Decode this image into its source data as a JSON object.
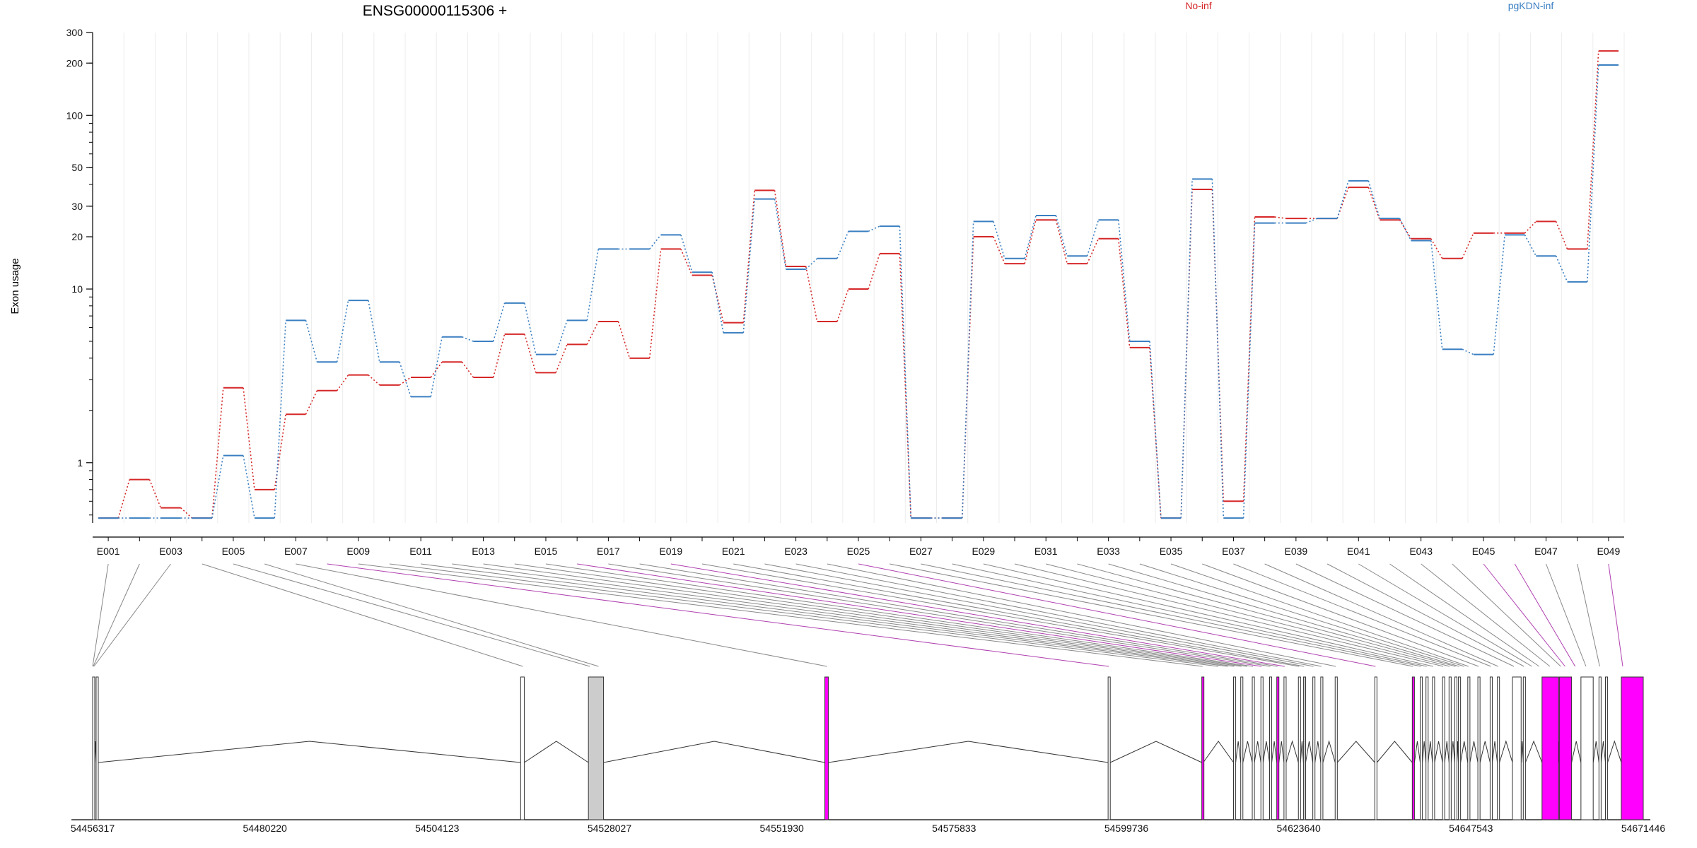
{
  "chart_data": {
    "type": "line",
    "title": "ENSG00000115306 +",
    "ylabel": "Exon usage",
    "xlabel": "",
    "y_scale": "log",
    "ylim": [
      0.45,
      300
    ],
    "y_ticks": [
      1,
      10,
      20,
      30,
      50,
      100,
      200,
      300
    ],
    "categories": [
      "E001",
      "E002",
      "E003",
      "E004",
      "E005",
      "E006",
      "E007",
      "E008",
      "E009",
      "E010",
      "E011",
      "E012",
      "E013",
      "E014",
      "E015",
      "E016",
      "E017",
      "E018",
      "E019",
      "E020",
      "E021",
      "E022",
      "E023",
      "E024",
      "E025",
      "E026",
      "E027",
      "E028",
      "E029",
      "E030",
      "E031",
      "E032",
      "E033",
      "E034",
      "E035",
      "E036",
      "E037",
      "E038",
      "E039",
      "E040",
      "E041",
      "E042",
      "E043",
      "E044",
      "E045",
      "E046",
      "E047",
      "E048",
      "E049"
    ],
    "x_tick_labels": [
      "E001",
      "E003",
      "E005",
      "E007",
      "E009",
      "E011",
      "E013",
      "E015",
      "E017",
      "E019",
      "E021",
      "E023",
      "E025",
      "E027",
      "E029",
      "E031",
      "E033",
      "E035",
      "E037",
      "E039",
      "E041",
      "E043",
      "E045",
      "E047",
      "E049"
    ],
    "series": [
      {
        "name": "No-inf",
        "color": "#d62728",
        "values": [
          0.48,
          0.8,
          0.55,
          0.48,
          2.7,
          0.7,
          1.9,
          2.6,
          3.2,
          2.8,
          3.1,
          3.8,
          3.1,
          5.5,
          3.3,
          4.8,
          6.5,
          4.0,
          17,
          12,
          6.4,
          37,
          13.5,
          6.5,
          10,
          16,
          0.48,
          0.48,
          20,
          14,
          25,
          14,
          19.5,
          4.6,
          0.48,
          37.5,
          0.6,
          26,
          25.5,
          25.5,
          38.5,
          25,
          19.5,
          15,
          21,
          21,
          24.5,
          17,
          235
        ]
      },
      {
        "name": "pgKDN-inf",
        "color": "#3a7fc1",
        "values": [
          0.48,
          0.48,
          0.48,
          0.48,
          1.1,
          0.48,
          6.6,
          3.8,
          8.6,
          3.8,
          2.4,
          5.3,
          5.0,
          8.3,
          4.2,
          6.6,
          17,
          17,
          20.5,
          12.5,
          5.6,
          33,
          13,
          15,
          21.5,
          23,
          0.48,
          0.48,
          24.5,
          15,
          26.5,
          15.5,
          25,
          5.0,
          0.48,
          43,
          0.48,
          24,
          24,
          25.5,
          42,
          25.5,
          19,
          4.5,
          4.2,
          20.5,
          15.5,
          11,
          195
        ]
      }
    ],
    "gene_model": {
      "coordinate_labels": [
        "54456317",
        "54480220",
        "54504123",
        "54528027",
        "54551930",
        "54575833",
        "54599736",
        "54623640",
        "54647543",
        "54671446"
      ],
      "coord_start": 54456317,
      "coord_end": 54671446,
      "exon_starts": [
        54456317,
        54456800,
        54515700,
        54525100,
        54557900,
        54597200,
        54610200,
        54614600,
        54615600,
        54617200,
        54618400,
        54619600,
        54620600,
        54621600,
        54623600,
        54624300,
        54625600,
        54626700,
        54628700,
        54634200,
        54639400,
        54640500,
        54641300,
        54642200,
        54643600,
        54644500,
        54645300,
        54645800,
        54647100,
        54648500,
        54650200,
        54651200,
        54653300,
        54654800,
        54657400,
        54659800,
        54662800,
        54665300,
        54666200,
        54668400
      ],
      "exon_ends": [
        54456600,
        54457100,
        54516200,
        54527200,
        54558400,
        54597500,
        54610400,
        54614900,
        54615900,
        54617500,
        54618700,
        54619900,
        54620900,
        54621900,
        54623900,
        54624600,
        54625900,
        54627000,
        54629000,
        54634500,
        54639700,
        54640800,
        54641600,
        54642500,
        54643900,
        54644800,
        54645600,
        54646100,
        54647400,
        54648800,
        54650500,
        54651500,
        54654500,
        54655100,
        54659700,
        54661500,
        54664500,
        54665600,
        54666500,
        54671446
      ],
      "exon_fills": [
        "white",
        "white",
        "white",
        "#cccccc",
        "magenta",
        "white",
        "magenta",
        "white",
        "white",
        "white",
        "white",
        "white",
        "magenta",
        "white",
        "white",
        "#cccccc",
        "white",
        "white",
        "white",
        "white",
        "magenta",
        "white",
        "white",
        "white",
        "white",
        "white",
        "white",
        "white",
        "white",
        "white",
        "white",
        "white",
        "white",
        "white",
        "magenta",
        "magenta",
        "white",
        "white",
        "white",
        "magenta"
      ],
      "connector_targets": [
        54456320,
        54456400,
        54456500,
        54516000,
        54525300,
        54526500,
        54558200,
        54597300,
        54610300,
        54612500,
        54613800,
        54614700,
        54615700,
        54616500,
        54617300,
        54618500,
        54619700,
        54620700,
        54621700,
        54623700,
        54624400,
        54625700,
        54626800,
        54628800,
        54634300,
        54639500,
        54640600,
        54641400,
        54642300,
        54643700,
        54644600,
        54645400,
        54645900,
        54646600,
        54647200,
        54648600,
        54650300,
        54651300,
        54653500,
        54654900,
        54656000,
        54657000,
        54658500,
        54660000,
        54660600,
        54662000,
        54663500,
        54665400,
        54668600
      ],
      "connector_colors": [
        "#888",
        "#888",
        "#888",
        "#888",
        "#888",
        "#888",
        "#888",
        "#b040b0",
        "#888",
        "#888",
        "#888",
        "#888",
        "#888",
        "#888",
        "#888",
        "#b040b0",
        "#888",
        "#888",
        "#b040b0",
        "#888",
        "#888",
        "#888",
        "#888",
        "#888",
        "#b040b0",
        "#888",
        "#888",
        "#888",
        "#888",
        "#888",
        "#888",
        "#888",
        "#888",
        "#888",
        "#888",
        "#888",
        "#888",
        "#888",
        "#888",
        "#888",
        "#888",
        "#888",
        "#888",
        "#888",
        "#b040b0",
        "#b040b0",
        "#888",
        "#888",
        "#b040b0"
      ]
    }
  }
}
